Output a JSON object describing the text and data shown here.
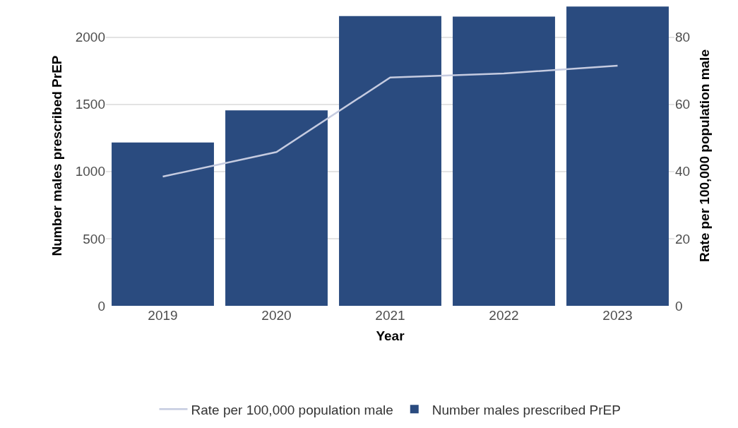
{
  "chart_data": {
    "type": "bar",
    "xlabel": "Year",
    "ylabel": "Number males prescribed PrEP",
    "y2label": "Rate per 100,000 population male",
    "categories": [
      "2019",
      "2020",
      "2021",
      "2022",
      "2023"
    ],
    "series": [
      {
        "name": "Rate per 100,000 population male",
        "type": "line",
        "axis": "y2",
        "color": "#c5cbe0",
        "values": [
          38.5,
          45.8,
          68.0,
          69.2,
          71.5
        ]
      },
      {
        "name": "Number males prescribed PrEP",
        "color": "#2a4b7f",
        "values": [
          1216,
          1455,
          2158,
          2153,
          2229
        ]
      }
    ],
    "ylim": [
      0,
      2235
    ],
    "yticks": [
      0,
      500,
      1000,
      1500,
      2000
    ],
    "y2lim": [
      0,
      89.4
    ],
    "y2ticks": [
      0,
      20,
      40,
      60,
      80
    ],
    "grid": "y",
    "legend": "bottom",
    "marker": "none",
    "line_style": "solid"
  }
}
